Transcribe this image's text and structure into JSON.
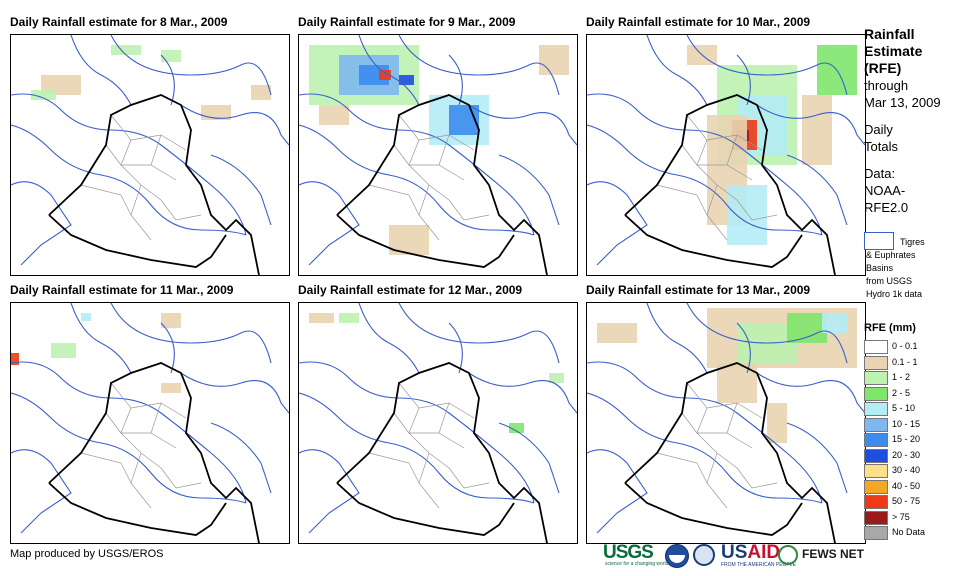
{
  "panels": [
    {
      "title": "Daily Rainfall estimate for 8 Mar., 2009"
    },
    {
      "title": "Daily Rainfall estimate for 9 Mar., 2009"
    },
    {
      "title": "Daily Rainfall estimate for 10 Mar., 2009"
    },
    {
      "title": "Daily Rainfall estimate for 11 Mar., 2009"
    },
    {
      "title": "Daily Rainfall estimate for 12 Mar., 2009"
    },
    {
      "title": "Daily Rainfall estimate for 13 Mar., 2009"
    }
  ],
  "legend": {
    "title_line1": "Rainfall",
    "title_line2": "Estimate",
    "title_line3": "(RFE)",
    "through": "through",
    "date": "Mar 13, 2009",
    "daily": "Daily",
    "totals": "Totals",
    "data_label": "Data:",
    "data_src1": "NOAA-",
    "data_src2": "RFE2.0",
    "basin_line1": "Tigres",
    "basin_line2": "& Euphrates",
    "basin_line3": "Basins",
    "basin_line4": "from USGS",
    "basin_line5": "Hydro 1k data",
    "rfe_title": "RFE (mm)",
    "classes": [
      {
        "label": "0 - 0.1",
        "color": "#ffffff"
      },
      {
        "label": "0.1 - 1",
        "color": "#e8d4b0"
      },
      {
        "label": "1 - 2",
        "color": "#bdf2b0"
      },
      {
        "label": "2 - 5",
        "color": "#7ee66b"
      },
      {
        "label": "5 - 10",
        "color": "#b4ecf5"
      },
      {
        "label": "10 - 15",
        "color": "#7fb8f0"
      },
      {
        "label": "15 - 20",
        "color": "#3c8cf0"
      },
      {
        "label": "20 - 30",
        "color": "#1f4fe0"
      },
      {
        "label": "30 - 40",
        "color": "#fbe08a"
      },
      {
        "label": "40 - 50",
        "color": "#f5a623"
      },
      {
        "label": "50 - 75",
        "color": "#ee3a16"
      },
      {
        "label": "> 75",
        "color": "#9b1b1b"
      },
      {
        "label": "No Data",
        "color": "#a8a8a8"
      }
    ]
  },
  "footer": {
    "credit": "Map produced by USGS/EROS",
    "logo_usgs": "USGS",
    "logo_usgs_sub": "science for a changing world",
    "logo_usaid_a": "US",
    "logo_usaid_b": "AID",
    "logo_usaid_sub": "FROM THE AMERICAN PEOPLE",
    "logo_fews": "FEWS NET"
  }
}
